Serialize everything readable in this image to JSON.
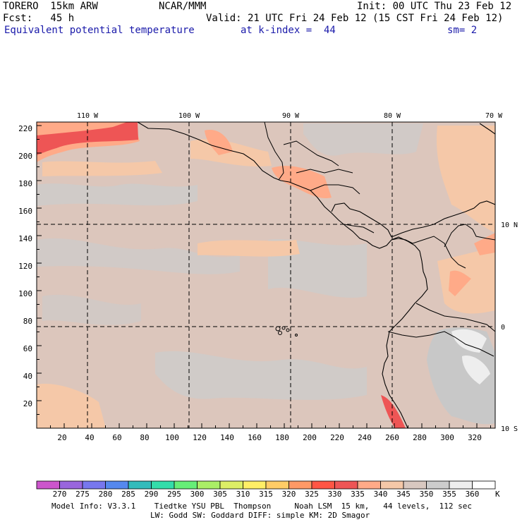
{
  "header": {
    "model": "TORERO  15km ARW",
    "center": "NCAR/MMM",
    "init": "Init: 00 UTC Thu 23 Feb 12",
    "fcst": "Fcst:   45 h",
    "valid": "Valid: 21 UTC Fri 24 Feb 12 (15 CST Fri 24 Feb 12)",
    "field": "Equivalent potential temperature",
    "level": "at k-index =  44",
    "smooth": "sm= 2"
  },
  "map": {
    "lon_labels": [
      "110 W",
      "100 W",
      "90 W",
      "80 W",
      "70 W"
    ],
    "lat_labels": [
      "10 N",
      "0",
      "10 S"
    ],
    "x_ticks": [
      "20",
      "40",
      "60",
      "80",
      "100",
      "120",
      "140",
      "160",
      "180",
      "200",
      "220",
      "240",
      "260",
      "280",
      "300",
      "320"
    ],
    "y_ticks": [
      "20",
      "40",
      "60",
      "80",
      "100",
      "120",
      "140",
      "160",
      "180",
      "200",
      "220"
    ]
  },
  "colorbar": {
    "labels": [
      "270",
      "275",
      "280",
      "285",
      "290",
      "295",
      "300",
      "305",
      "310",
      "315",
      "320",
      "325",
      "330",
      "335",
      "340",
      "345",
      "350",
      "355",
      "360"
    ],
    "unit": "K",
    "colors": [
      "#cc55cc",
      "#9966dd",
      "#7777ee",
      "#5588ee",
      "#33bbbb",
      "#33ddaa",
      "#66ee77",
      "#aaee66",
      "#ddee66",
      "#ffee66",
      "#ffcc66",
      "#ff9966",
      "#ff5544",
      "#ee5555",
      "#ffaa88",
      "#f5c8a8",
      "#d8c8c0",
      "#cccccc",
      "#eeeeee",
      "#ffffff"
    ]
  },
  "footer": {
    "line1": "Model Info: V3.3.1    Tiedtke YSU PBL  Thompson     Noah LSM  15 km,   44 levels,  112 sec",
    "line2": "LW: Godd SW: Goddard DIFF: simple KM: 2D Smagor"
  }
}
